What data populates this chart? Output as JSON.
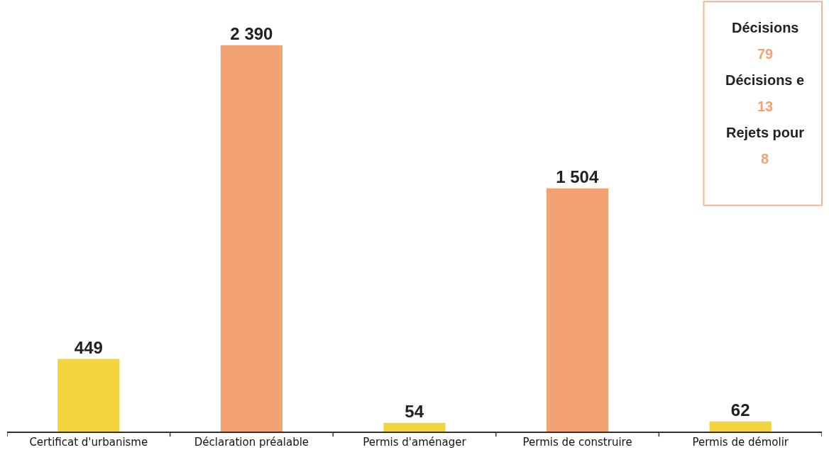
{
  "chart_data": {
    "type": "bar",
    "categories": [
      "Certificat d'urbanisme",
      "Déclaration préalable",
      "Permis d'aménager",
      "Permis de construire",
      "Permis de démolir"
    ],
    "values": [
      449,
      2390,
      54,
      1504,
      62
    ],
    "colors": [
      "#f4d43c",
      "#f2a272",
      "#f4d43c",
      "#f2a272",
      "#f4d43c"
    ],
    "value_labels": [
      "449",
      "2 390",
      "54",
      "1 504",
      "62"
    ],
    "annotations": [
      "Décisions",
      "79",
      "Décisions e",
      "13",
      "Rejets pour",
      "8"
    ],
    "legend": false
  }
}
